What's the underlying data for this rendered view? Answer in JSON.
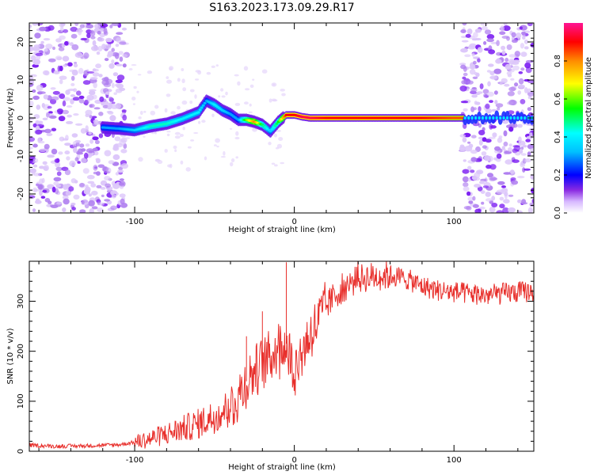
{
  "title": "S163.2023.173.09.29.R17",
  "chart_data": [
    {
      "type": "heatmap",
      "xlabel": "Height of straight line (km)",
      "ylabel": "Frequency (Hz)",
      "xlim": [
        -166,
        150
      ],
      "ylim": [
        -25,
        25
      ],
      "x_ticks": [
        -100,
        0,
        100
      ],
      "y_ticks": [
        -20,
        -10,
        0,
        10,
        20
      ],
      "colorbar": {
        "label": "Normalized spectral amplitude",
        "range": [
          0,
          1
        ],
        "ticks": [
          0.0,
          0.2,
          0.4,
          0.6,
          0.8
        ],
        "tick_labels": [
          "0.0",
          "0.2",
          "0.4",
          "0.6",
          "0.8"
        ],
        "colors": [
          "#ffffff",
          "#cfa8ff",
          "#7a1cff",
          "#0000ff",
          "#00ffff",
          "#00ff00",
          "#ffff00",
          "#ffa000",
          "#ff0000",
          "#ff1493"
        ]
      },
      "ridge": {
        "x": [
          -120,
          -110,
          -100,
          -90,
          -80,
          -70,
          -60,
          -55,
          -50,
          -45,
          -40,
          -35,
          -30,
          -25,
          -20,
          -15,
          -10,
          -5,
          0,
          5,
          10,
          20,
          40,
          60,
          80,
          100,
          106
        ],
        "y": [
          -2.5,
          -2.8,
          -3.2,
          -2.2,
          -1.5,
          -0.2,
          1.5,
          4.5,
          3.5,
          2.0,
          1.0,
          -0.5,
          -0.5,
          -1.0,
          -1.8,
          -3.5,
          -1.0,
          0.8,
          0.8,
          0.3,
          0.0,
          0.0,
          0.0,
          0.0,
          0.0,
          0.0,
          0.0
        ],
        "amplitude": [
          0.3,
          0.3,
          0.35,
          0.45,
          0.45,
          0.4,
          0.4,
          0.3,
          0.4,
          0.35,
          0.3,
          0.3,
          0.6,
          0.8,
          0.5,
          0.35,
          0.55,
          0.9,
          0.9,
          0.95,
          0.95,
          0.9,
          0.9,
          0.9,
          0.9,
          0.85,
          0.85
        ]
      },
      "noise_regions_x": [
        [
          -166,
          -105
        ],
        [
          105,
          150
        ]
      ]
    },
    {
      "type": "line",
      "xlabel": "Height of straight line (km)",
      "ylabel": "SNR (10 * v/v)",
      "xlim": [
        -166,
        150
      ],
      "ylim": [
        0,
        380
      ],
      "x_ticks": [
        -100,
        0,
        100
      ],
      "y_ticks": [
        0,
        100,
        200,
        300
      ],
      "series": [
        {
          "color": "#e8302c",
          "x": [
            -166,
            -150,
            -130,
            -110,
            -100,
            -90,
            -80,
            -70,
            -60,
            -50,
            -40,
            -35,
            -30,
            -25,
            -20,
            -15,
            -10,
            -5,
            0,
            5,
            10,
            15,
            20,
            25,
            30,
            40,
            50,
            60,
            70,
            80,
            90,
            100,
            110,
            120,
            130,
            140,
            150
          ],
          "values": [
            12,
            10,
            11,
            13,
            18,
            25,
            35,
            45,
            55,
            70,
            90,
            110,
            140,
            160,
            175,
            190,
            210,
            215,
            160,
            200,
            235,
            260,
            290,
            310,
            325,
            345,
            350,
            352,
            345,
            330,
            322,
            318,
            315,
            312,
            315,
            318,
            320
          ]
        }
      ],
      "spikes": [
        {
          "x": -5,
          "value": 378
        },
        {
          "x": -20,
          "value": 280
        },
        {
          "x": -30,
          "value": 230
        }
      ]
    }
  ]
}
